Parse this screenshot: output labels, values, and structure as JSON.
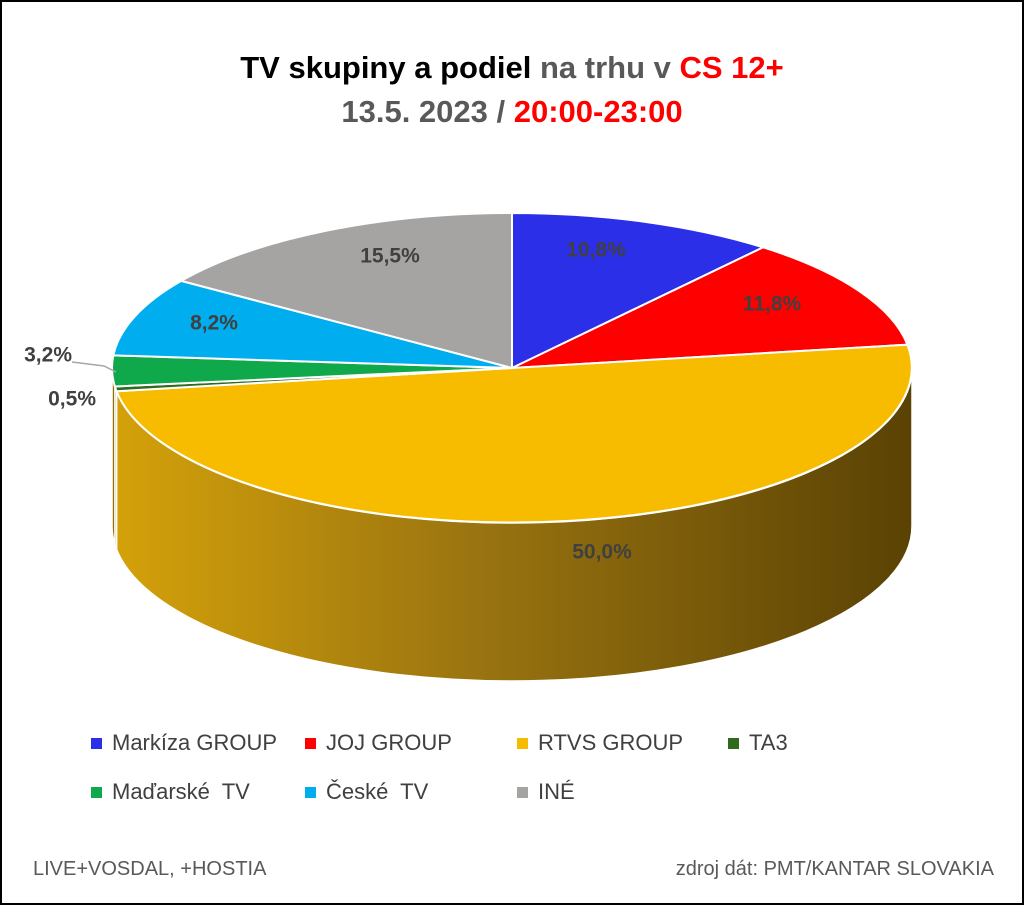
{
  "title": {
    "line1_part1": "TV skupiny a podiel",
    "line1_part2": " na trhu v ",
    "line1_part3": "CS 12+",
    "line2_part1": "13.5. 2023 / ",
    "line2_part2": "20:00-23:00"
  },
  "chart_data": {
    "type": "pie",
    "style": "3d",
    "legend_position": "bottom",
    "slices": [
      {
        "name": "Markíza GROUP",
        "value": 10.8,
        "label": "10,8%",
        "color": "#2b2fe8"
      },
      {
        "name": "JOJ GROUP",
        "value": 11.8,
        "label": "11,8%",
        "color": "#ff0000"
      },
      {
        "name": "RTVS GROUP",
        "value": 50.0,
        "label": "50,0%",
        "color": "#f7bb00"
      },
      {
        "name": "TA3",
        "value": 0.5,
        "label": "0,5%",
        "color": "#2e6b1f"
      },
      {
        "name": "Maďarské  TV",
        "value": 3.2,
        "label": "3,2%",
        "color": "#0fa84a"
      },
      {
        "name": "České  TV",
        "value": 8.2,
        "label": "8,2%",
        "color": "#00aeef"
      },
      {
        "name": "INÉ",
        "value": 15.5,
        "label": "15,5%",
        "color": "#a6a3a3"
      }
    ]
  },
  "footer": {
    "left": "LIVE+VOSDAL, +HOSTIA",
    "right": "zdroj dát: PMT/KANTAR SLOVAKIA"
  }
}
